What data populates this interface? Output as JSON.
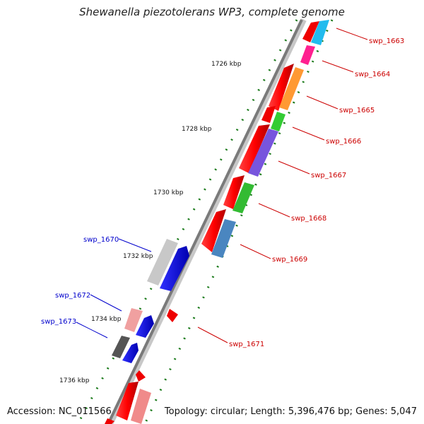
{
  "title": "Shewanella piezotolerans WP3, complete genome",
  "accession_text": "Accession: NC_011566",
  "topology_text": "Topology: circular; Length: 5,396,476 bp; Genes: 5,047",
  "ticks": [
    "1726 kbp",
    "1728 kbp",
    "1730 kbp",
    "1732 kbp",
    "1734 kbp",
    "1736 kbp"
  ],
  "gene_labels": [
    {
      "text": "swp_1663",
      "strand": "reverse"
    },
    {
      "text": "swp_1664",
      "strand": "reverse"
    },
    {
      "text": "swp_1665",
      "strand": "reverse"
    },
    {
      "text": "swp_1666",
      "strand": "reverse"
    },
    {
      "text": "swp_1667",
      "strand": "reverse"
    },
    {
      "text": "swp_1668",
      "strand": "reverse"
    },
    {
      "text": "swp_1669",
      "strand": "reverse"
    },
    {
      "text": "swp_1670",
      "strand": "forward"
    },
    {
      "text": "swp_1671",
      "strand": "reverse"
    },
    {
      "text": "swp_1672",
      "strand": "forward"
    },
    {
      "text": "swp_1673",
      "strand": "forward"
    }
  ],
  "colors": {
    "forward_label": "#0000cc",
    "reverse_label": "#cc0000",
    "backbone": "#8a8a8a",
    "tick": "#1a7a1a"
  }
}
